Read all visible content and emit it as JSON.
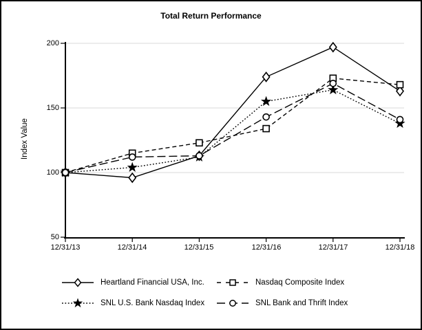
{
  "chart_data": {
    "type": "line",
    "title": "Total Return Performance",
    "xlabel": "",
    "ylabel": "Index Value",
    "categories": [
      "12/31/13",
      "12/31/14",
      "12/31/15",
      "12/31/16",
      "12/31/17",
      "12/31/18"
    ],
    "y_ticks": [
      "200",
      "150",
      "100",
      "50"
    ],
    "ylim": [
      50,
      200
    ],
    "grid": "horizontal-light-gray",
    "legend_position": "bottom-two-columns",
    "series": [
      {
        "name": "Heartland Financial USA, Inc.",
        "line": "solid",
        "marker": "diamond",
        "values": [
          100,
          96,
          113,
          174,
          197,
          163
        ]
      },
      {
        "name": "Nasdaq Composite Index",
        "line": "dashed",
        "marker": "square",
        "values": [
          100,
          115,
          123,
          134,
          173,
          168
        ]
      },
      {
        "name": "SNL U.S. Bank Nasdaq Index",
        "line": "dotted",
        "marker": "star",
        "values": [
          100,
          104,
          112,
          155,
          164,
          138
        ]
      },
      {
        "name": "SNL Bank and Thrift Index",
        "line": "long-dash",
        "marker": "circle",
        "values": [
          100,
          112,
          113,
          143,
          169,
          141
        ]
      }
    ]
  },
  "colors": {
    "line": "#000000",
    "marker_fill": "#ffffff",
    "grid": "#e0e0e0",
    "background": "#ffffff",
    "border": "#000000"
  }
}
